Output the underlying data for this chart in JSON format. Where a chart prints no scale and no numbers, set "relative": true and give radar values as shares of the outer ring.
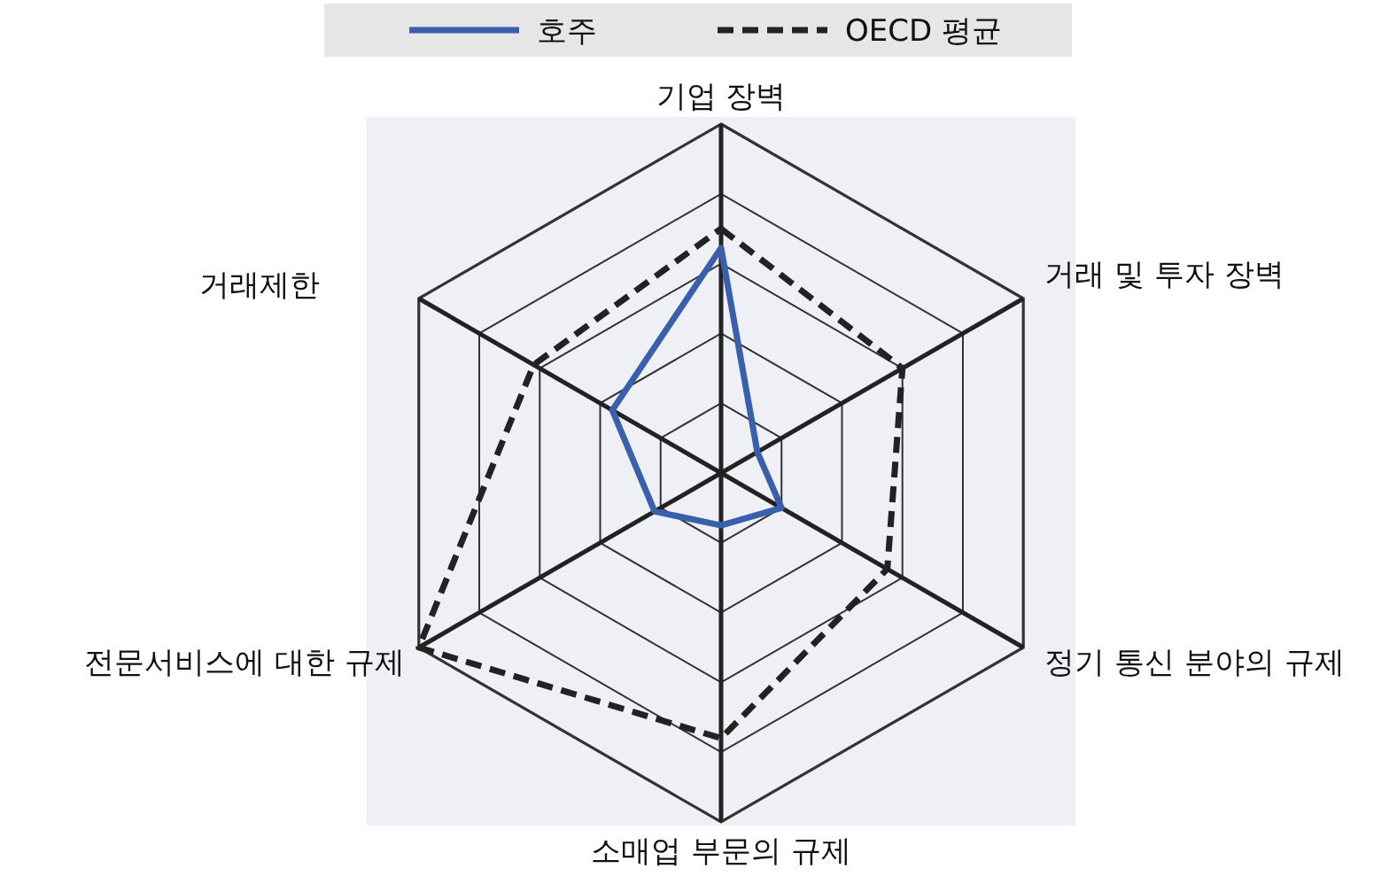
{
  "chart_data": {
    "type": "radar",
    "relative": true,
    "grid": true,
    "legend": "top",
    "marker": "none",
    "categories": [
      "기업 장벽",
      "거래 및 투자 장벽",
      "정기 통신 분야의 규제",
      "소매업 부문의 규제",
      "전문서비스에 대한 규제",
      "거래제한"
    ],
    "series": [
      {
        "name": "호주",
        "color": "#3a5fad",
        "line_style": "solid",
        "values": [
          0.645,
          0.12,
          0.2,
          0.15,
          0.22,
          0.36
        ]
      },
      {
        "name": "OECD 평균",
        "color": "#222222",
        "line_style": "dashed",
        "values": [
          0.7,
          0.6,
          0.55,
          0.76,
          1.0,
          0.62
        ]
      }
    ]
  }
}
